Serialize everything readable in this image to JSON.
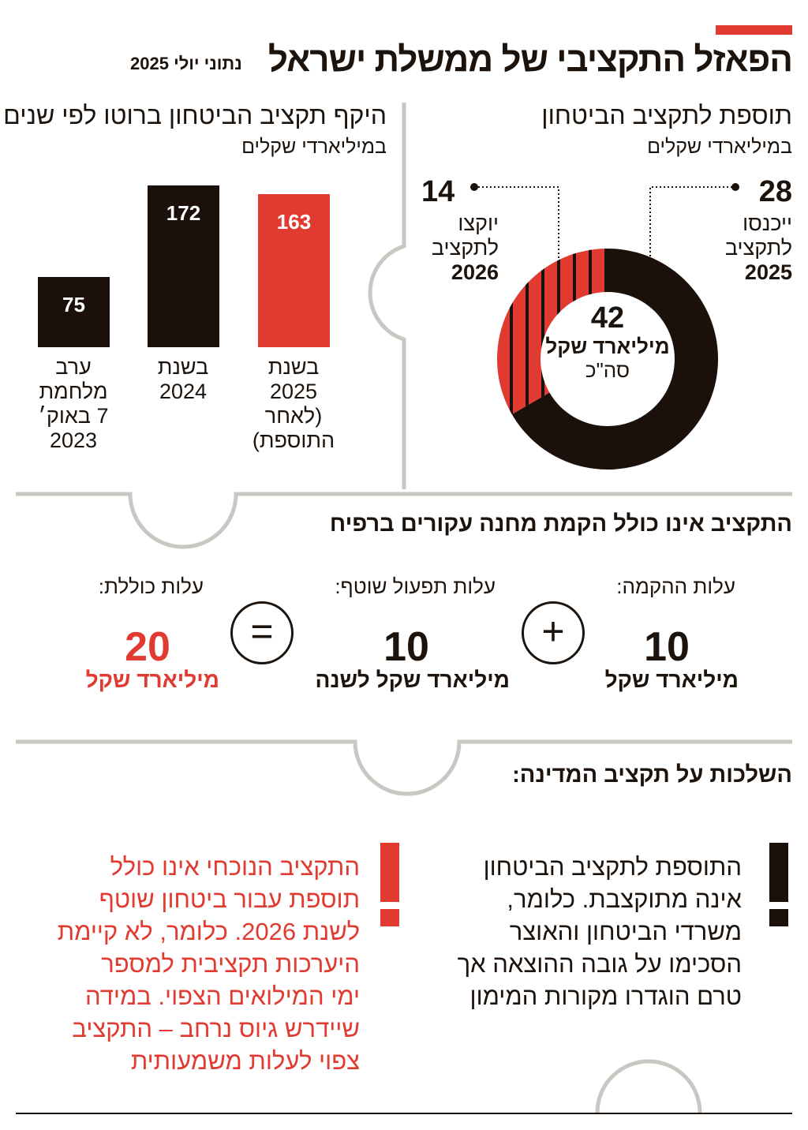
{
  "header": {
    "title": "הפאזל התקציבי של ממשלת ישראל",
    "subtitle": "נתוני יולי 2025",
    "accent_color": "#e03a31"
  },
  "donut_panel": {
    "title": "תוספת לתקציב הביטחון",
    "unit": "במיליארדי שקלים",
    "total_value": "42",
    "total_unit": "מיליארד שקל",
    "total_label": "סה\"כ",
    "left_value": "14",
    "left_label_1": "יוקצו",
    "left_label_2": "לתקציב",
    "left_label_3": "2026",
    "right_value": "28",
    "right_label_1": "ייכנסו",
    "right_label_2": "לתקציב",
    "right_label_3": "2025"
  },
  "bar_panel": {
    "title": "היקף תקציב הביטחון ברוטו לפי שנים",
    "unit": "במיליארדי שקלים"
  },
  "chart_data": [
    {
      "type": "pie",
      "title": "תוספת לתקציב הביטחון",
      "slices": [
        {
          "label": "ייכנסו לתקציב 2025",
          "value": 28,
          "color": "#1c100a"
        },
        {
          "label": "יוקצו לתקציב 2026",
          "value": 14,
          "color": "#e03a31"
        }
      ],
      "total": 42
    },
    {
      "type": "bar",
      "title": "היקף תקציב הביטחון ברוטו לפי שנים",
      "ylabel": "במיליארדי שקלים",
      "categories": [
        "ערב מלחמת 7 באוק׳ 2023",
        "בשנת 2024",
        "בשנת 2025 (לאחר התוספת)"
      ],
      "category_lines": [
        [
          "ערב",
          "מלחמת",
          "7 באוק׳",
          "2023"
        ],
        [
          "בשנת",
          "2024"
        ],
        [
          "בשנת",
          "2025",
          "(לאחר",
          "התוספת)"
        ]
      ],
      "values": [
        75,
        172,
        163
      ],
      "colors": [
        "#1c100a",
        "#1c100a",
        "#e03a31"
      ]
    }
  ],
  "camp_section": {
    "title": "התקציב אינו כולל הקמת מחנה עקורים ברפיח",
    "items": [
      {
        "label": "עלות ההקמה:",
        "value": "10",
        "unit": "מיליארד שקל"
      },
      {
        "label": "עלות תפעול שוטף:",
        "value": "10",
        "unit": "מיליארד שקל לשנה"
      },
      {
        "label": "עלות כוללת:",
        "value": "20",
        "unit": "מיליארד שקל"
      }
    ],
    "plus_symbol": "+",
    "equals_symbol": "="
  },
  "implications": {
    "title": "השלכות על תקציב המדינה:",
    "note_1_lines": [
      "התוספת לתקציב הביטחון",
      "אינה מתוקצבת. כלומר,",
      "משרדי הביטחון והאוצר",
      "הסכימו על גובה ההוצאה אך",
      "טרם הוגדרו מקורות המימון"
    ],
    "note_2_lines": [
      "התקציב הנוכחי אינו כולל",
      "תוספת עבור ביטחון שוטף",
      "לשנת 2026. כלומר, לא קיימת",
      "היערכות תקציבית למספר",
      "ימי המילואים הצפוי. במידה",
      "שיידרש גיוס נרחב – התקציב",
      "צפוי לעלות משמעותית"
    ],
    "exclamation": "!"
  }
}
